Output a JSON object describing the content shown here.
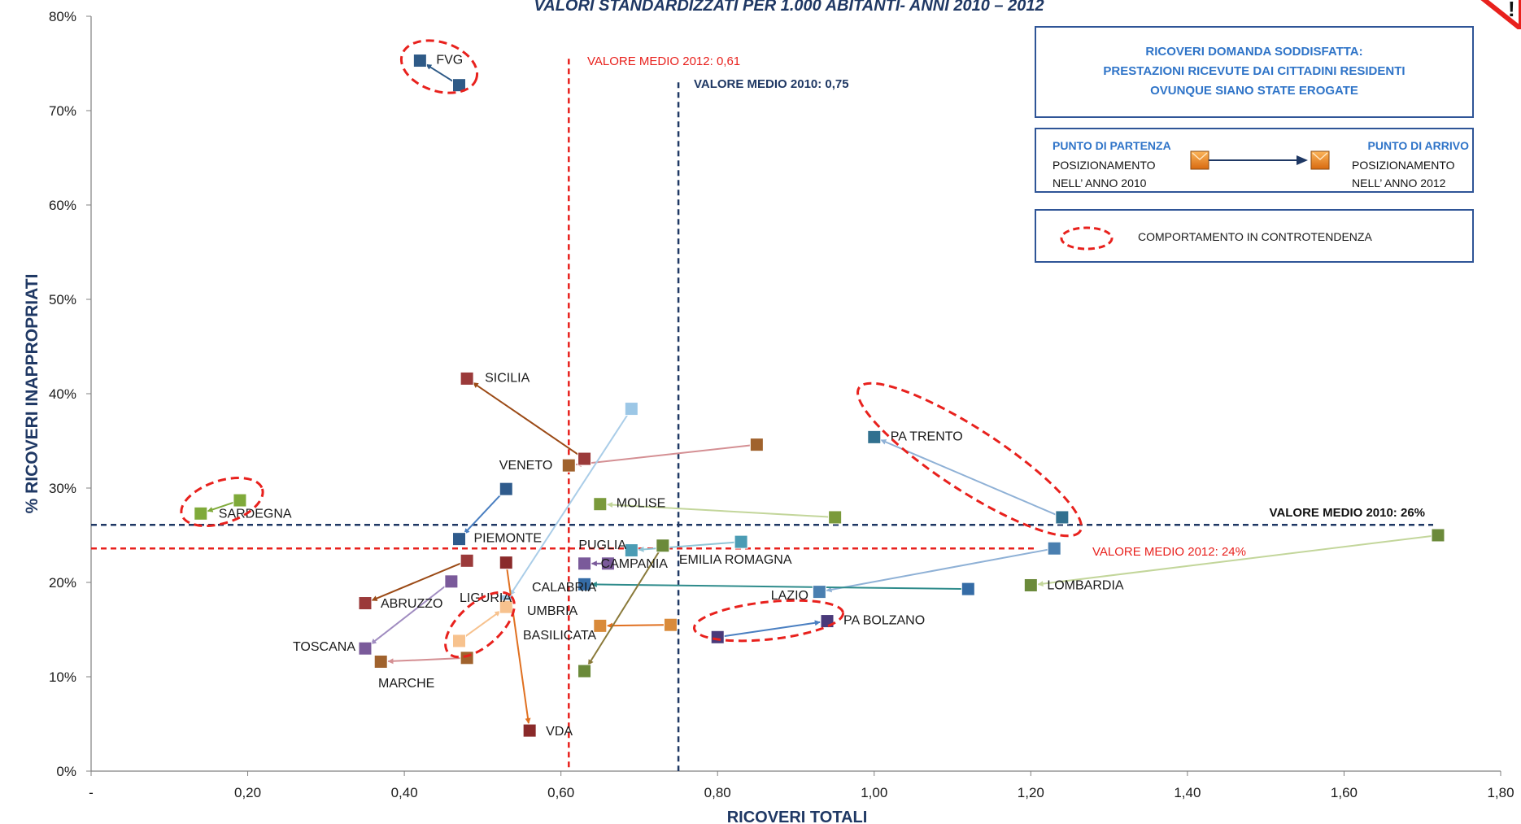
{
  "chart_data": {
    "type": "scatter",
    "title": "VALORI STANDARDIZZATI PER 1.000 ABITANTI- ANNI 2010 – 2012",
    "xlabel": "RICOVERI TOTALI",
    "ylabel": "% RICOVERI INAPPROPRIATI",
    "xlim": [
      0,
      1.8
    ],
    "ylim": [
      0,
      80
    ],
    "x_ticks": [
      "-",
      "0,20",
      "0,40",
      "0,60",
      "0,80",
      "1,00",
      "1,20",
      "1,40",
      "1,60",
      "1,80"
    ],
    "y_ticks": [
      "0%",
      "10%",
      "20%",
      "30%",
      "40%",
      "50%",
      "60%",
      "70%",
      "80%"
    ],
    "reference_lines": [
      {
        "label": "VALORE MEDIO 2012:  0,61",
        "axis": "x",
        "value": 0.61,
        "color": "#e8211d"
      },
      {
        "label": "VALORE MEDIO 2010:  0,75",
        "axis": "x",
        "value": 0.75,
        "color": "#1f3864"
      },
      {
        "label": "VALORE MEDIO 2010: 26%",
        "axis": "y",
        "value": 26.1,
        "color": "#1f3864"
      },
      {
        "label": "VALORE MEDIO 2012: 24%",
        "axis": "y",
        "value": 23.6,
        "color": "#e8211d"
      }
    ],
    "series": [
      {
        "name": "FVG",
        "from": [
          0.47,
          72.7
        ],
        "to": [
          0.42,
          75.3
        ],
        "color": "#2e5a87",
        "line": "#2e5a87"
      },
      {
        "name": "SICILIA",
        "from": [
          0.63,
          33.1
        ],
        "to": [
          0.48,
          41.6
        ],
        "color": "#9b3a3a",
        "line": "#9b4a16"
      },
      {
        "name": "VENETO",
        "from": [
          0.85,
          34.6
        ],
        "to": [
          0.61,
          32.4
        ],
        "color": "#a0622d",
        "line": "#d48f93"
      },
      {
        "name": "PA TRENTO",
        "from": [
          1.24,
          26.9
        ],
        "to": [
          1.0,
          35.4
        ],
        "color": "#31708f",
        "line": "#8fb1d6"
      },
      {
        "name": "SARDEGNA",
        "from": [
          0.19,
          28.7
        ],
        "to": [
          0.14,
          27.3
        ],
        "color": "#7faa3a",
        "line": "#7faa3a"
      },
      {
        "name": "MOLISE",
        "from": [
          0.95,
          26.9
        ],
        "to": [
          0.65,
          28.3
        ],
        "color": "#7a9a3b",
        "line": "#c3d69b"
      },
      {
        "name": "PIEMONTE",
        "from": [
          0.53,
          29.9
        ],
        "to": [
          0.47,
          24.6
        ],
        "color": "#2f5b8c",
        "line": "#4a7fc1"
      },
      {
        "name": "PUGLIA",
        "from": [
          0.83,
          24.3
        ],
        "to": [
          0.69,
          23.4
        ],
        "color": "#4b9cb4",
        "line": "#8fc5d6"
      },
      {
        "name": "CAMPANIA",
        "from": [
          0.66,
          22.0
        ],
        "to": [
          0.63,
          22.0
        ],
        "color": "#7a5a9a",
        "line": "#7a5a9a"
      },
      {
        "name": "LOMBARDIA",
        "from": [
          1.72,
          25.0
        ],
        "to": [
          1.2,
          19.7
        ],
        "color": "#6b8a3a",
        "line": "#c3d69b"
      },
      {
        "name": "LAZIO",
        "from": [
          1.23,
          23.6
        ],
        "to": [
          0.93,
          19.0
        ],
        "color": "#4a7fb0",
        "line": "#8fb1d6"
      },
      {
        "name": "CALABRIA",
        "from": [
          1.12,
          19.3
        ],
        "to": [
          0.63,
          19.8
        ],
        "color": "#356ca6",
        "line": "#2e8b8b"
      },
      {
        "name": "ABRUZZO",
        "from": [
          0.48,
          22.3
        ],
        "to": [
          0.35,
          17.8
        ],
        "color": "#9b3a3a",
        "line": "#9b4a16"
      },
      {
        "name": "LIGURIA",
        "from": [
          0.69,
          38.4
        ],
        "to": [
          0.53,
          18.0
        ],
        "color": "#9cc7e6",
        "line": "#aacde8"
      },
      {
        "name": "UMBRIA",
        "from": [
          0.47,
          13.8
        ],
        "to": [
          0.53,
          17.4
        ],
        "color": "#f7c28e",
        "line": "#f7c28e"
      },
      {
        "name": "TOSCANA",
        "from": [
          0.46,
          20.1
        ],
        "to": [
          0.35,
          13.0
        ],
        "color": "#7a5a9a",
        "line": "#a08cc0"
      },
      {
        "name": "BASILICATA",
        "from": [
          0.74,
          15.5
        ],
        "to": [
          0.65,
          15.4
        ],
        "color": "#d98a3a",
        "line": "#e07020"
      },
      {
        "name": "PA BOLZANO",
        "from": [
          0.8,
          14.2
        ],
        "to": [
          0.94,
          15.9
        ],
        "color": "#4a3a7a",
        "line": "#4a7fc1"
      },
      {
        "name": "MARCHE",
        "from": [
          0.48,
          12.0
        ],
        "to": [
          0.37,
          11.6
        ],
        "color": "#a0622d",
        "line": "#d48f93"
      },
      {
        "name": "EMILIA ROMAGNA",
        "from": [
          0.73,
          23.9
        ],
        "to": [
          0.63,
          10.6
        ],
        "color": "#6b8a3a",
        "line": "#8a7a3a"
      },
      {
        "name": "VDA",
        "from": [
          0.53,
          22.1
        ],
        "to": [
          0.56,
          4.3
        ],
        "color": "#8a2a2a",
        "line": "#e07020"
      }
    ],
    "highlight_ellipses": [
      "FVG",
      "SARDEGNA",
      "PA TRENTO",
      "UMBRIA",
      "PA BOLZANO"
    ]
  },
  "legend": {
    "box1_lines": [
      "RICOVERI DOMANDA SODDISFATTA:",
      "PRESTAZIONI RICEVUTE DAI CITTADINI RESIDENTI",
      "OVUNQUE SIANO STATE EROGATE"
    ],
    "start_title": "PUNTO DI PARTENZA",
    "start_line1": "POSIZIONAMENTO",
    "start_line2": "NELL’ ANNO  2010",
    "end_title": "PUNTO DI ARRIVO",
    "end_line1": "POSIZIONAMENTO",
    "end_line2": "NELL’ ANNO  2012",
    "ellipse_text": "COMPORTAMENTO IN CONTROTENDENZA"
  }
}
